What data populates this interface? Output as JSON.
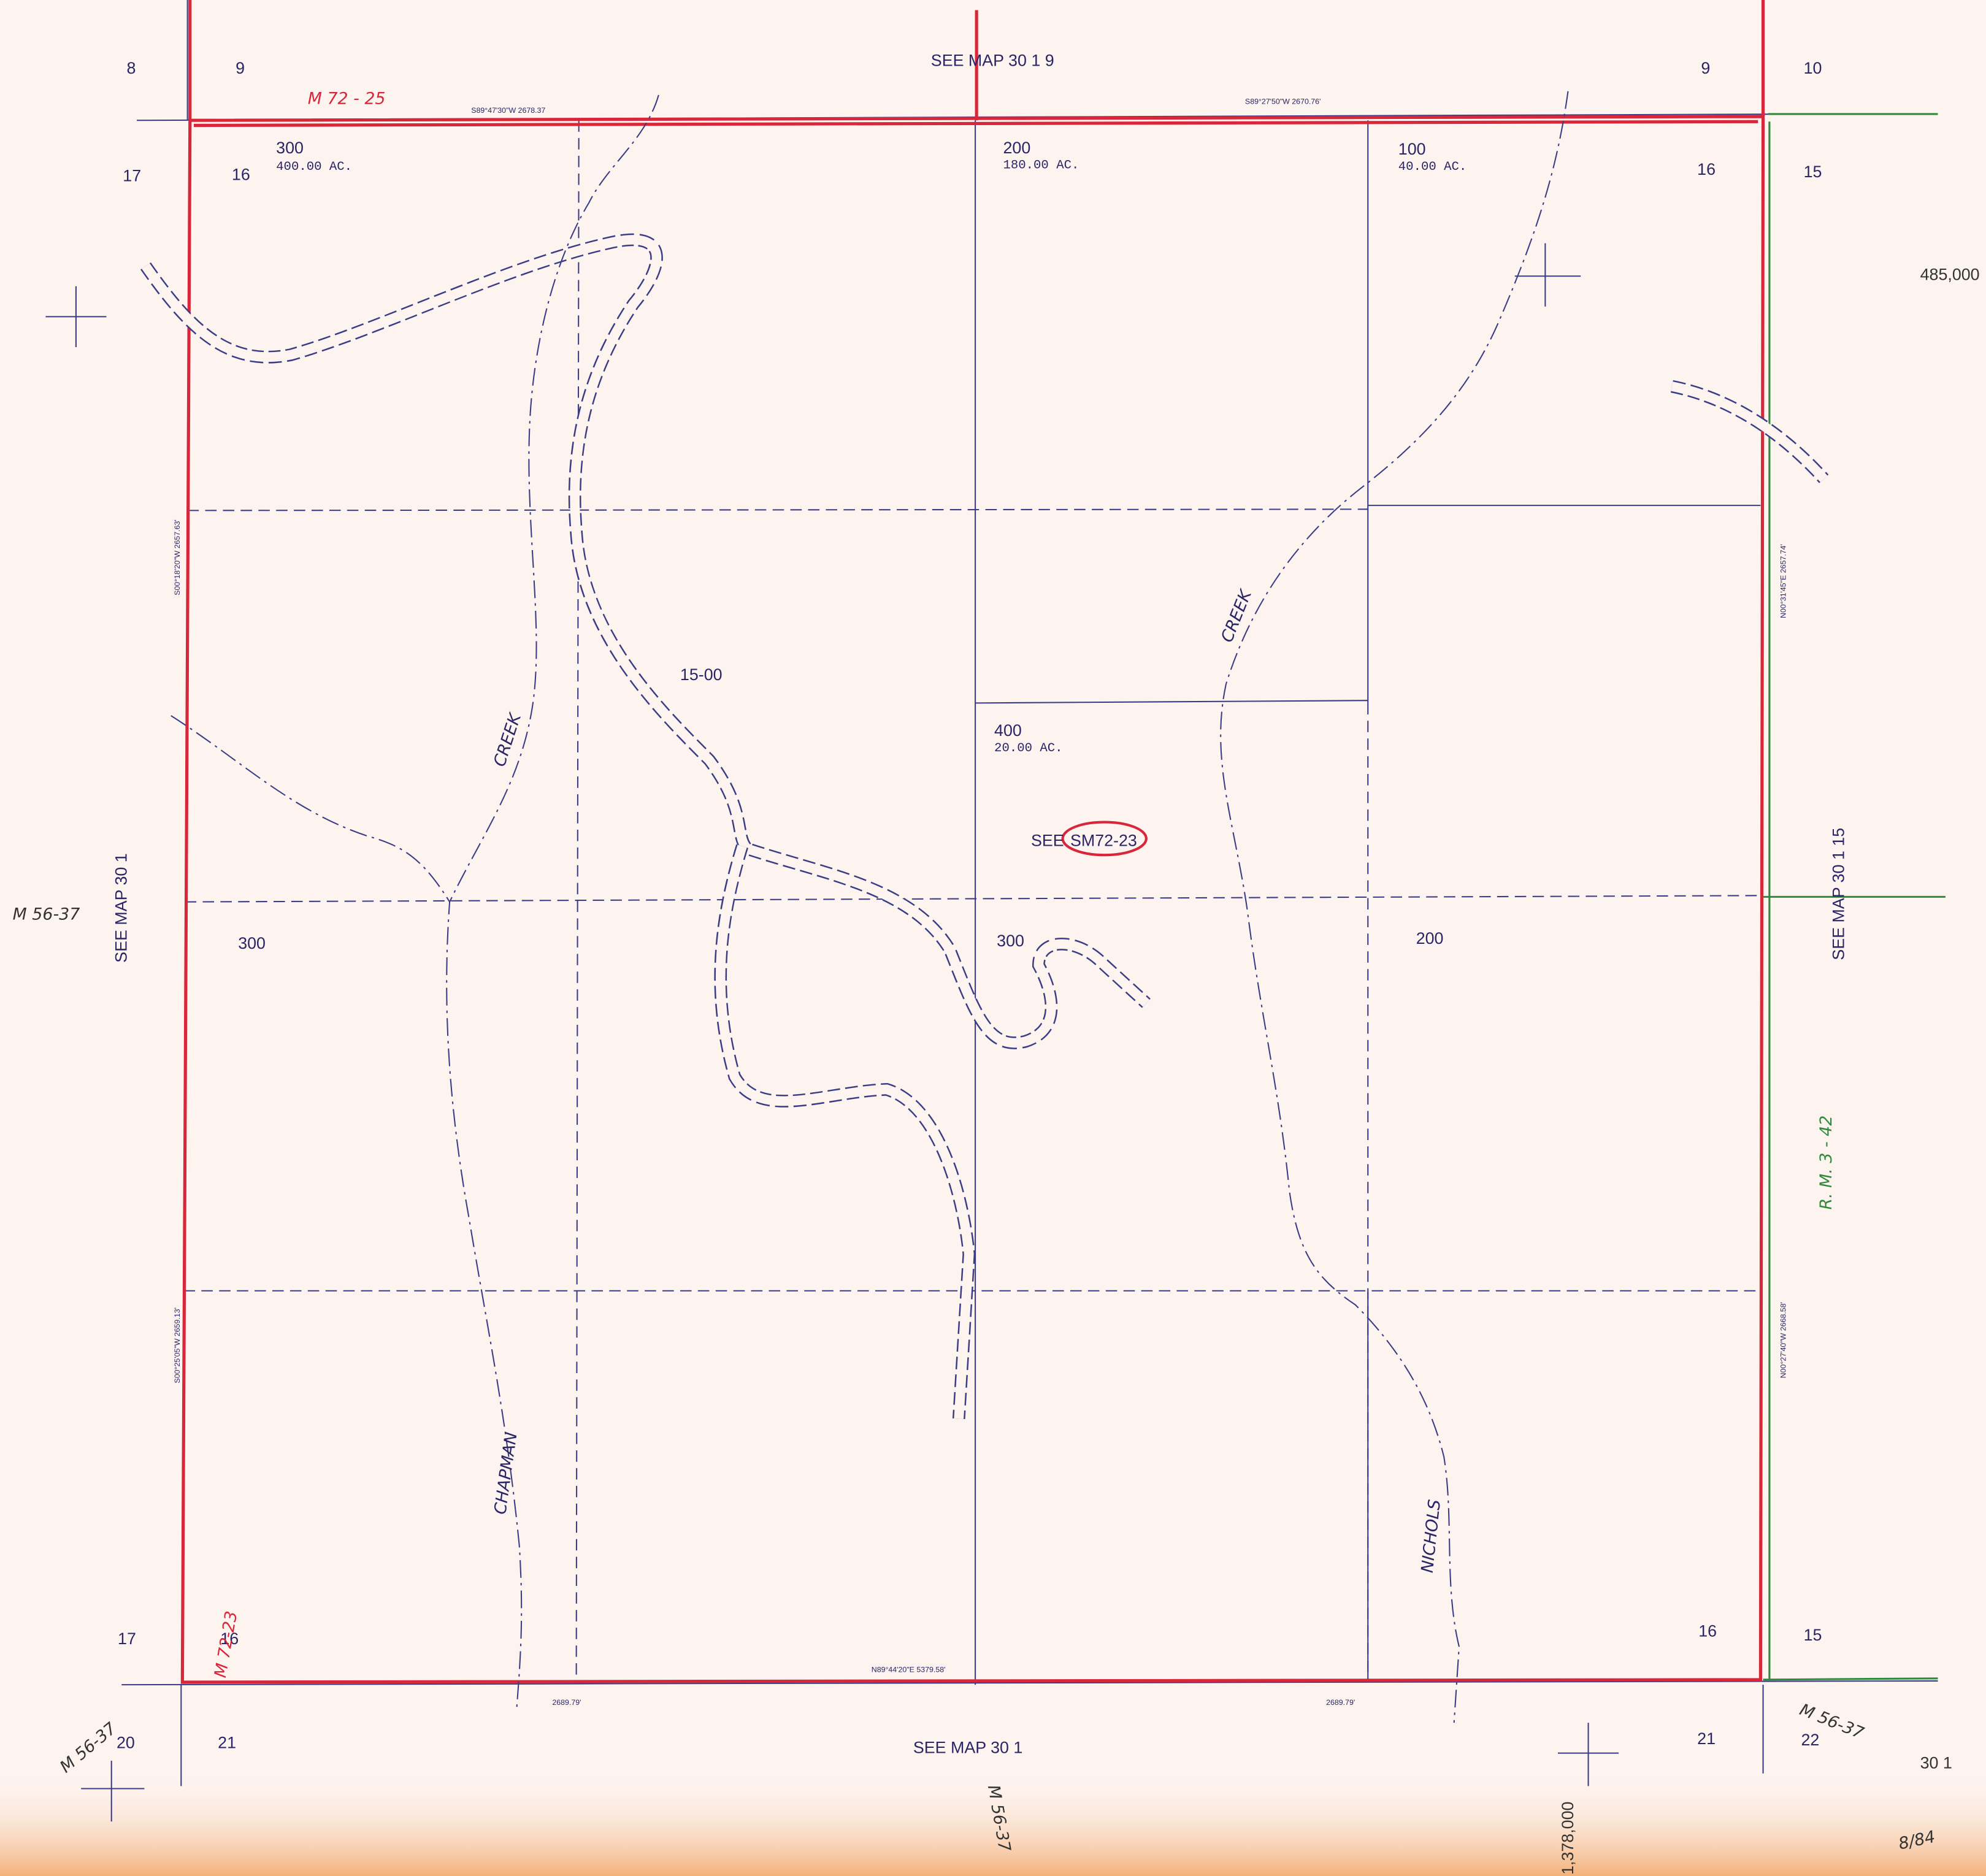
{
  "map_number": "15-00",
  "corner_sections": {
    "top_left": [
      "8",
      "9"
    ],
    "top_right": [
      "9",
      "10"
    ],
    "upper_left": [
      "17",
      "16"
    ],
    "upper_right": [
      "16",
      "15"
    ],
    "lower_left": [
      "17",
      "16"
    ],
    "lower_right": [
      "16",
      "15"
    ],
    "bottom_left": [
      "20",
      "21"
    ],
    "bottom_right": [
      "21",
      "22"
    ]
  },
  "see_maps": {
    "top": "SEE MAP 30 1 9",
    "left": "SEE MAP 30 1",
    "right": "SEE MAP 30 1 15",
    "bottom": "SEE MAP 30 1",
    "inner_see": "SEE",
    "inner_ref": "SM72-23"
  },
  "parcels": [
    {
      "number": "300",
      "acres": "400.00 AC."
    },
    {
      "number": "200",
      "acres": "180.00 AC."
    },
    {
      "number": "100",
      "acres": "40.00 AC."
    },
    {
      "number": "400",
      "acres": "20.00 AC."
    }
  ],
  "lot_numbers": [
    "300",
    "300",
    "200"
  ],
  "bearings": {
    "top_left": "S89°47'30\"W  2678.37",
    "top_right": "S89°27'50\"W  2670.76'",
    "left_upper": "S00°18'20\"W  2657.63'",
    "left_lower": "S00°25'05\"W  2659.13'",
    "right_upper": "N00°31'45\"E  2657.74'",
    "right_lower": "N00°27'40\"W  2668.58'",
    "bottom": "N89°44'20\"E  5379.58'",
    "bottom_left": "2689.79'",
    "bottom_right": "2689.79'"
  },
  "creeks": [
    "CREEK",
    "CREEK",
    "CHAPMAN",
    "NICHOLS"
  ],
  "annotations": {
    "top": "M 72 - 25",
    "left": "M 72-23",
    "right": "R. M. 3 - 42",
    "m56": [
      "M 56-37",
      "M 56-37",
      "M 56-37",
      "M 56-37"
    ]
  },
  "coordinates": [
    "485,000",
    "1,378,000"
  ],
  "sheet": {
    "number": "30 1",
    "date": "8/84"
  }
}
